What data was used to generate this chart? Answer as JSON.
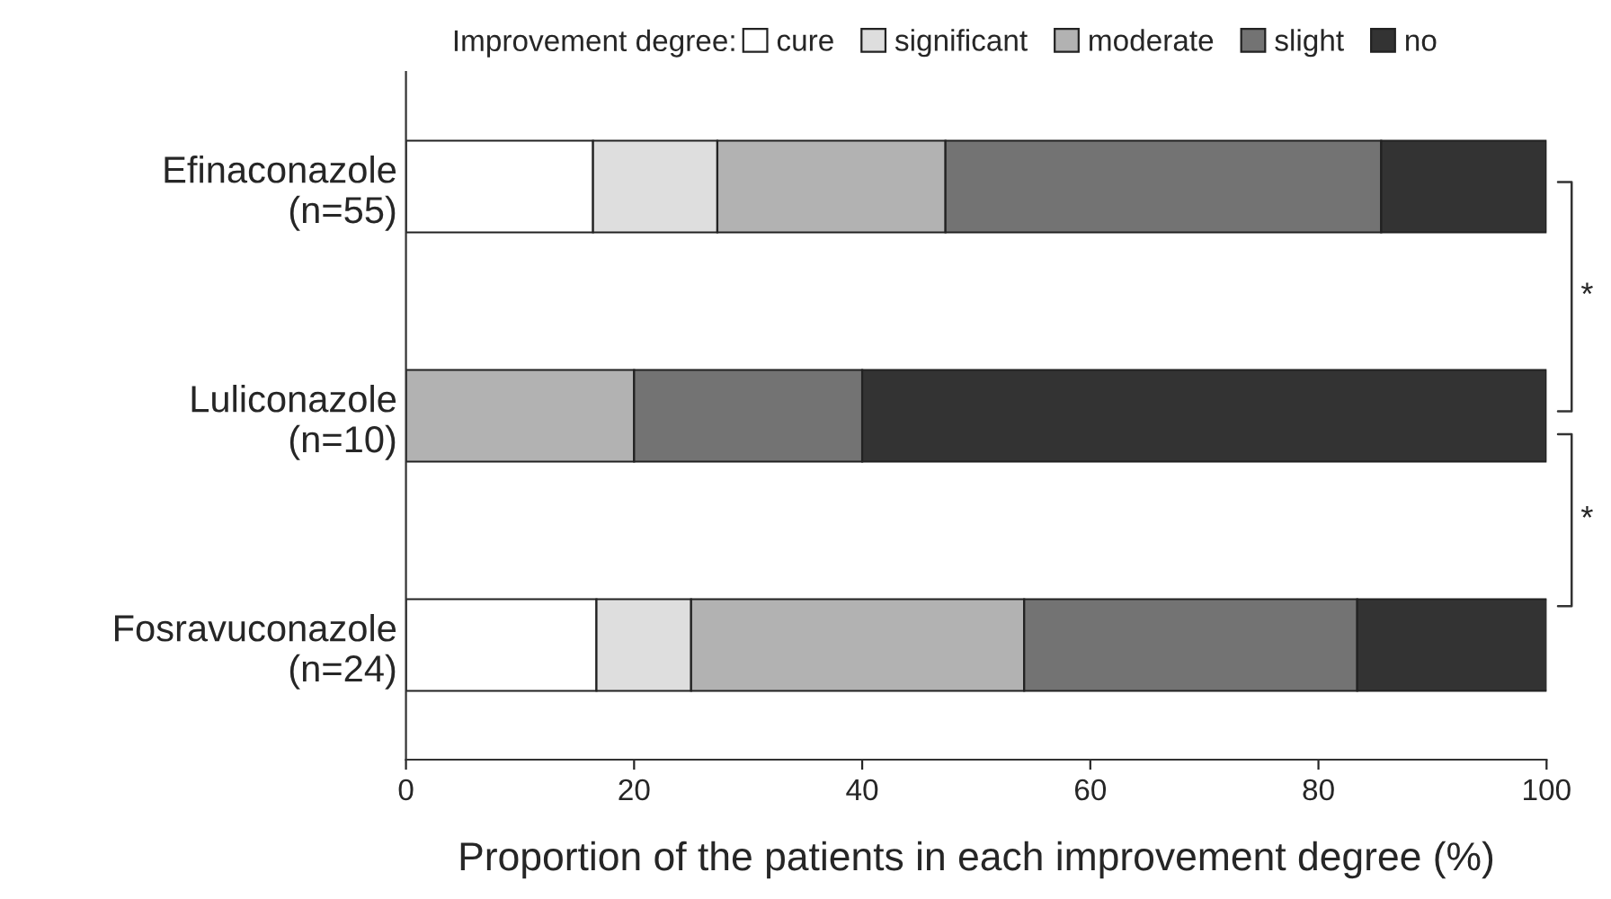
{
  "chart_data": {
    "type": "bar",
    "orientation": "horizontal",
    "stacked": true,
    "categories": [
      "Efinaconazole\n(n=55)",
      "Luliconazole\n(n=10)",
      "Fosravuconazole\n(n=24)"
    ],
    "legend_title": "Improvement degree:",
    "legend": "top",
    "series": [
      {
        "name": "cure",
        "color": "#ffffff",
        "values": [
          16.4,
          0,
          16.7
        ]
      },
      {
        "name": "significant",
        "color": "#dedede",
        "values": [
          10.9,
          0,
          8.3
        ]
      },
      {
        "name": "moderate",
        "color": "#b2b2b2",
        "values": [
          20.0,
          20,
          29.2
        ]
      },
      {
        "name": "slight",
        "color": "#737373",
        "values": [
          38.2,
          20,
          29.2
        ]
      },
      {
        "name": "no",
        "color": "#333333",
        "values": [
          14.5,
          60,
          16.7
        ]
      }
    ],
    "xlabel": "Proportion of the patients in each improvement degree (%)",
    "xlim": [
      0,
      100
    ],
    "xticks": [
      0,
      20,
      40,
      60,
      80,
      100
    ],
    "grid": false,
    "annotations": [
      "*",
      "*"
    ]
  }
}
